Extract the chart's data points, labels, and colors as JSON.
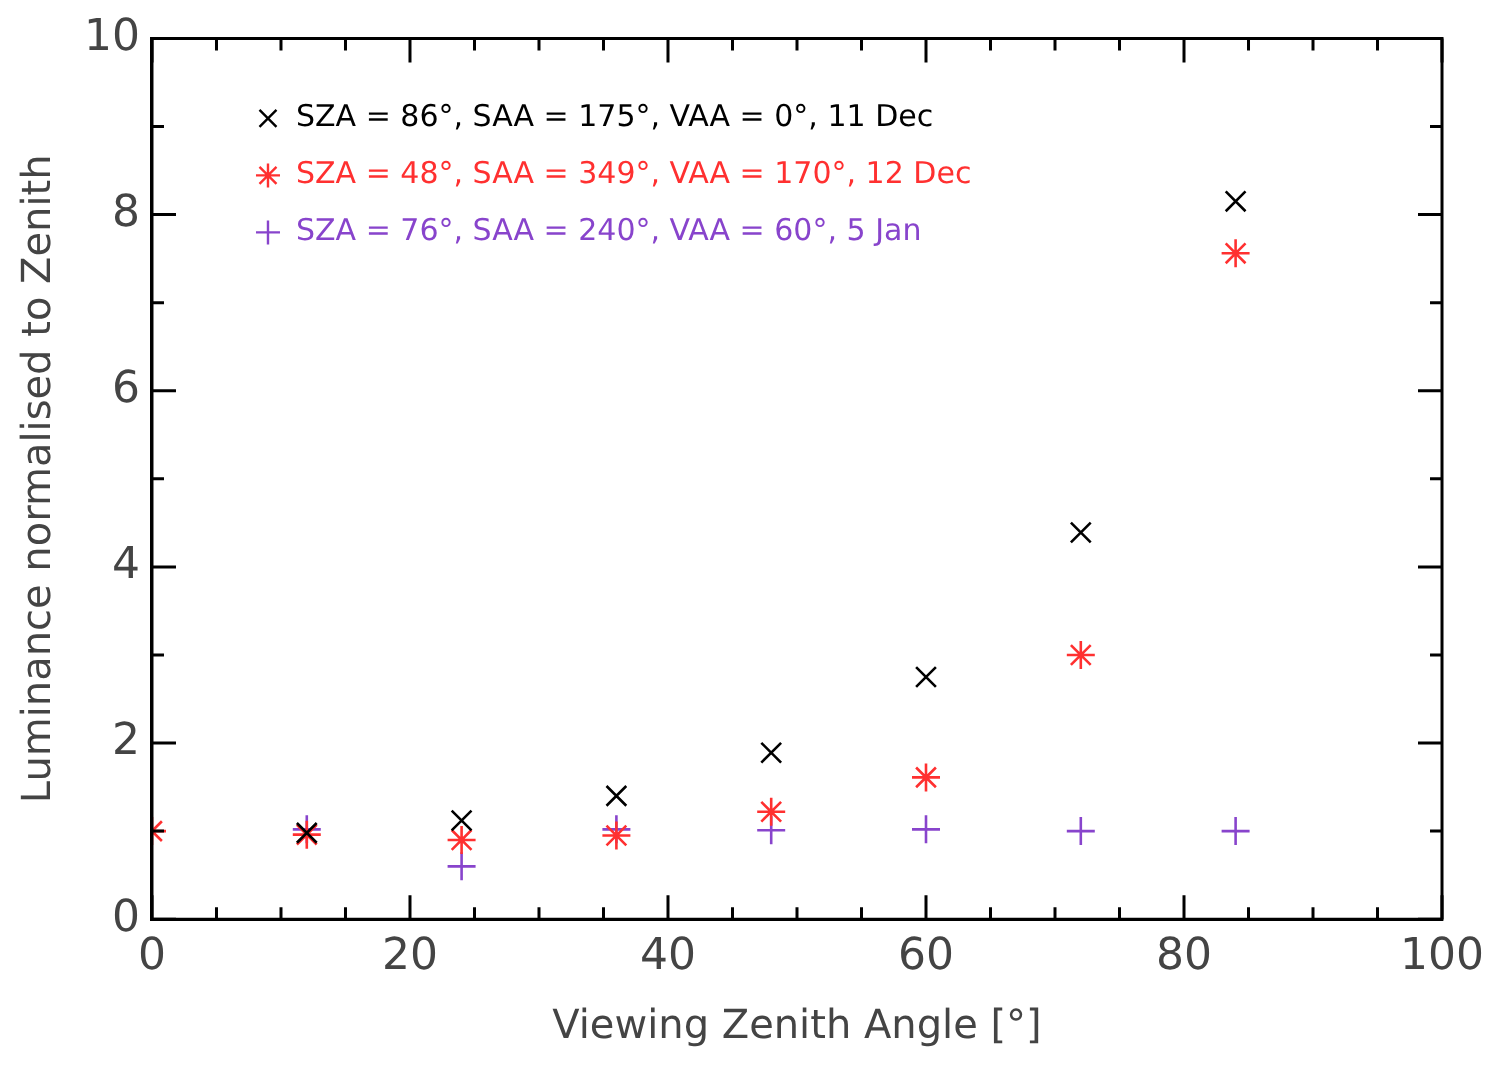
{
  "chart_data": {
    "type": "scatter",
    "xlabel": "Viewing Zenith Angle [°]",
    "ylabel": "Luminance normalised to Zenith",
    "x": [
      0,
      12,
      24,
      36,
      48,
      60,
      72,
      84
    ],
    "series": [
      {
        "name": "SZA = 86°, SAA = 175°, VAA = 0°, 11 Dec",
        "color": "#000000",
        "marker": "cross",
        "values": [
          null,
          0.98,
          1.12,
          1.4,
          1.89,
          2.75,
          4.39,
          8.15
        ]
      },
      {
        "name": "SZA = 48°, SAA = 349°, VAA = 170°, 12 Dec",
        "color": "#ff3030",
        "values": [
          1.0,
          0.96,
          0.9,
          0.95,
          1.22,
          1.61,
          3.0,
          7.56
        ]
      },
      {
        "name": "SZA = 76°, SAA = 240°, VAA = 60°, 5 Jan",
        "color": "#8844cc",
        "marker": "plus",
        "values": [
          null,
          1.02,
          0.6,
          1.02,
          1.01,
          1.02,
          1.0,
          1.0
        ]
      }
    ],
    "xlim": [
      0,
      100
    ],
    "xticks": [
      0,
      20,
      40,
      60,
      80,
      100
    ],
    "ylim": [
      0,
      10
    ],
    "yticks": [
      0,
      2,
      4,
      6,
      8,
      10
    ],
    "grid": false,
    "legend": "top left"
  }
}
